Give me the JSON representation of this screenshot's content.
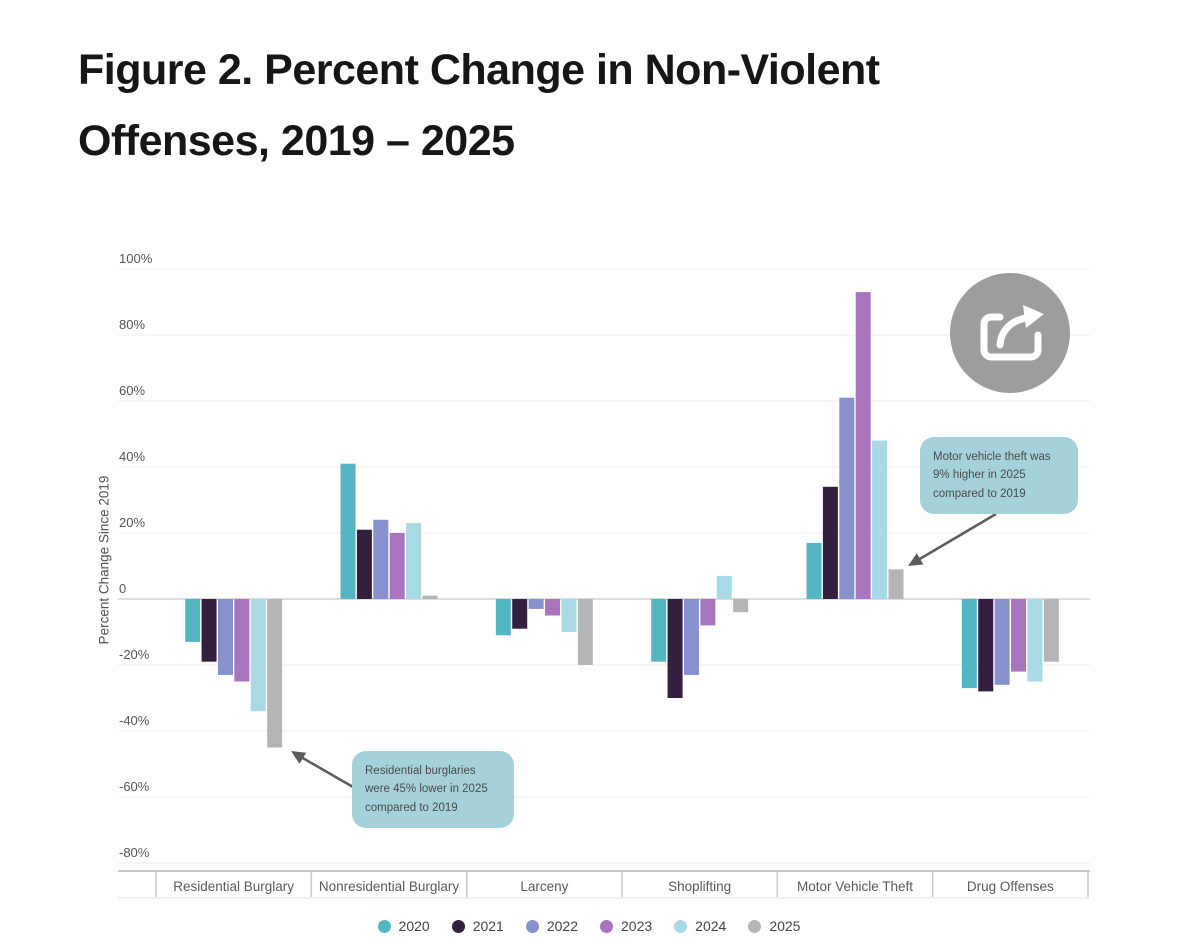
{
  "title": "Figure 2. Percent Change in Non-Violent\nOffenses, 2019 – 2025",
  "chart_data": {
    "type": "bar",
    "title": "Figure 2. Percent Change in Non-Violent Offenses, 2019 – 2025",
    "xlabel": "",
    "ylabel": "Percent Change Since 2019",
    "ylim": [
      -80,
      100
    ],
    "grid": true,
    "legend_position": "bottom",
    "ytick_values": [
      100,
      80,
      60,
      40,
      20,
      0,
      -20,
      -40,
      -60,
      -80
    ],
    "ytick_labels": [
      "100%",
      "80%",
      "60%",
      "40%",
      "20%",
      "0",
      "-20%",
      "-40%",
      "-60%",
      "-80%"
    ],
    "categories": [
      "Residential Burglary",
      "Nonresidential Burglary",
      "Larceny",
      "Shoplifting",
      "Motor Vehicle Theft",
      "Drug Offenses"
    ],
    "series": [
      {
        "name": "2020",
        "color": "#55b6c3",
        "values": [
          -13,
          41,
          -11,
          -19,
          17,
          -27
        ]
      },
      {
        "name": "2021",
        "color": "#33203f",
        "values": [
          -19,
          21,
          -9,
          -30,
          34,
          -28
        ]
      },
      {
        "name": "2022",
        "color": "#8691ce",
        "values": [
          -23,
          24,
          -3,
          -23,
          61,
          -26
        ]
      },
      {
        "name": "2023",
        "color": "#a974be",
        "values": [
          -25,
          20,
          -5,
          -8,
          93,
          -22
        ]
      },
      {
        "name": "2024",
        "color": "#a9d9e4",
        "values": [
          -34,
          23,
          -10,
          7,
          48,
          -25
        ]
      },
      {
        "name": "2025",
        "color": "#b5b4b6",
        "values": [
          -45,
          1,
          -20,
          -4,
          9,
          -19
        ]
      }
    ]
  },
  "annotations": [
    {
      "text": "Motor vehicle theft was\n9% higher in 2025\ncompared to 2019",
      "bg": "#a5d2da"
    },
    {
      "text": "Residential burglaries\nwere 45% lower in 2025\ncompared to 2019",
      "bg": "#a5d2da"
    }
  ],
  "share_button": {
    "icon": "share-export-icon",
    "color": "#9d9d9d"
  }
}
